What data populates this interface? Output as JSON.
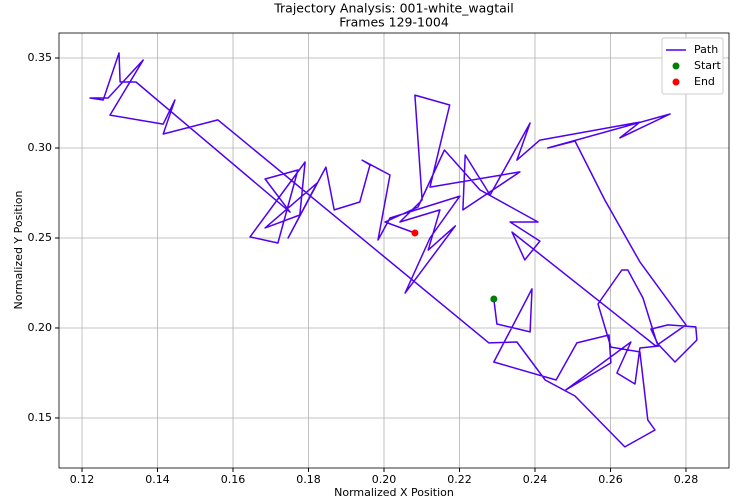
{
  "chart_data": {
    "type": "line",
    "title": "Trajectory Analysis: 001-white_wagtail",
    "subtitle": "Frames 129-1004",
    "x_label": "Normalized X Position",
    "y_label": "Normalized Y Position",
    "xlim": [
      0.1139,
      0.2914
    ],
    "ylim": [
      0.1222,
      0.3639
    ],
    "xticks": [
      0.12,
      0.14,
      0.16,
      0.18,
      {
        "value": 0.2,
        "label": "0.20"
      },
      0.22,
      0.24,
      0.26,
      0.28
    ],
    "yticks": [
      0.15,
      {
        "value": 0.2,
        "label": "0.20"
      },
      0.25,
      {
        "value": 0.3,
        "label": "0.30"
      },
      0.35
    ],
    "grid": true,
    "legend": "upper right",
    "series": [
      {
        "name": "Path",
        "color": "#5000f0",
        "style": "line",
        "x": [
          0.2291,
          0.2299,
          0.2387,
          0.2392,
          0.2291,
          0.2456,
          0.2511,
          0.2596,
          0.2601,
          0.2482,
          0.2654,
          0.2617,
          0.2665,
          0.2678,
          0.2728,
          0.2707,
          0.2752,
          0.2826,
          0.2829,
          0.2771,
          0.2723,
          0.2686,
          0.2646,
          0.263,
          0.2567,
          0.2601,
          0.2678,
          0.2699,
          0.2718,
          0.2638,
          0.2506,
          0.2427,
          0.2352,
          0.2278,
          0.156,
          0.1415,
          0.1446,
          0.1415,
          0.1274,
          0.1362,
          0.1269,
          0.1221,
          0.1256,
          0.1298,
          0.1301,
          0.1343,
          0.1751,
          0.1685,
          0.1772,
          0.1719,
          0.1645,
          0.1791,
          0.1777,
          0.1685,
          0.1823,
          0.1746,
          0.1846,
          0.1868,
          0.1936,
          0.1963,
          0.1942,
          0.2016,
          0.1984,
          0.2016,
          0.2201,
          0.2122,
          0.2056,
          0.2189,
          0.2117,
          0.2148,
          0.2042,
          0.2101,
          0.2082,
          0.2174,
          0.2122,
          0.236,
          0.2209,
          0.2215,
          0.2281,
          0.2387,
          0.2352,
          0.2413,
          0.2678,
          0.2625,
          0.2758,
          0.2434,
          0.2506,
          0.2585,
          0.2678,
          0.28,
          0.272,
          0.2339,
          0.2373,
          0.2413,
          0.2334,
          0.2408,
          0.2254,
          0.216,
          0.209,
          0.2003,
          0.2082
        ],
        "y": [
          0.2161,
          0.2022,
          0.1978,
          0.2217,
          0.1811,
          0.1711,
          0.1917,
          0.1961,
          0.1806,
          0.1656,
          0.1922,
          0.175,
          0.1689,
          0.1889,
          0.19,
          0.1994,
          0.2017,
          0.2006,
          0.1933,
          0.1811,
          0.1917,
          0.2167,
          0.2322,
          0.2322,
          0.2133,
          0.1894,
          0.1867,
          0.1489,
          0.1433,
          0.1339,
          0.1622,
          0.1711,
          0.1922,
          0.1917,
          0.3156,
          0.3078,
          0.3267,
          0.3133,
          0.3183,
          0.3489,
          0.3278,
          0.3278,
          0.3267,
          0.3528,
          0.3367,
          0.3367,
          0.2644,
          0.2828,
          0.2878,
          0.2472,
          0.2506,
          0.2922,
          0.2628,
          0.2556,
          0.2806,
          0.25,
          0.2894,
          0.2656,
          0.27,
          0.2906,
          0.2933,
          0.285,
          0.2489,
          0.2611,
          0.2733,
          0.25,
          0.2194,
          0.2567,
          0.2433,
          0.2656,
          0.2589,
          0.2711,
          0.3294,
          0.3239,
          0.2783,
          0.2867,
          0.2656,
          0.2961,
          0.2739,
          0.3139,
          0.2933,
          0.3044,
          0.3144,
          0.3056,
          0.3189,
          0.3,
          0.3039,
          0.2711,
          0.2367,
          0.2017,
          0.19,
          0.2533,
          0.2378,
          0.2483,
          0.2589,
          0.2589,
          0.2767,
          0.2989,
          0.2672,
          0.2589,
          0.2528
        ]
      },
      {
        "name": "Start",
        "color": "green",
        "style": "marker",
        "x": [
          0.2291
        ],
        "y": [
          0.2161
        ]
      },
      {
        "name": "End",
        "color": "red",
        "style": "marker",
        "x": [
          0.2082
        ],
        "y": [
          0.2528
        ]
      }
    ]
  }
}
